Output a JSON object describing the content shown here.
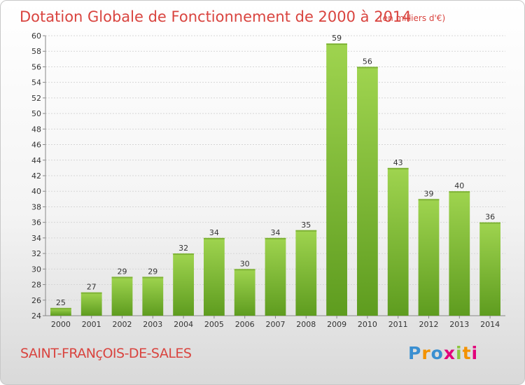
{
  "chart_data": {
    "type": "bar",
    "title": "Dotation Globale de Fonctionnement de 2000 à 2014",
    "subtitle": "(en milliers d'€)",
    "categories": [
      "2000",
      "2001",
      "2002",
      "2003",
      "2004",
      "2005",
      "2006",
      "2007",
      "2008",
      "2009",
      "2010",
      "2011",
      "2012",
      "2013",
      "2014"
    ],
    "values": [
      25,
      27,
      29,
      29,
      32,
      34,
      30,
      34,
      35,
      59,
      56,
      43,
      39,
      40,
      36
    ],
    "ylim": [
      24,
      60
    ],
    "yticks": [
      24,
      26,
      28,
      30,
      32,
      34,
      36,
      38,
      40,
      42,
      44,
      46,
      48,
      50,
      52,
      54,
      56,
      58,
      60
    ],
    "grid": true,
    "bar_color": "#8cc63f"
  },
  "commune": "SAINT-FRANçOIS-DE-SALES",
  "logo": {
    "text": "Proxiti",
    "colors": [
      "#3a8fd1",
      "#f39200",
      "#3a8fd1",
      "#e2007a",
      "#8cc63f",
      "#f39200",
      "#e2007a"
    ]
  }
}
